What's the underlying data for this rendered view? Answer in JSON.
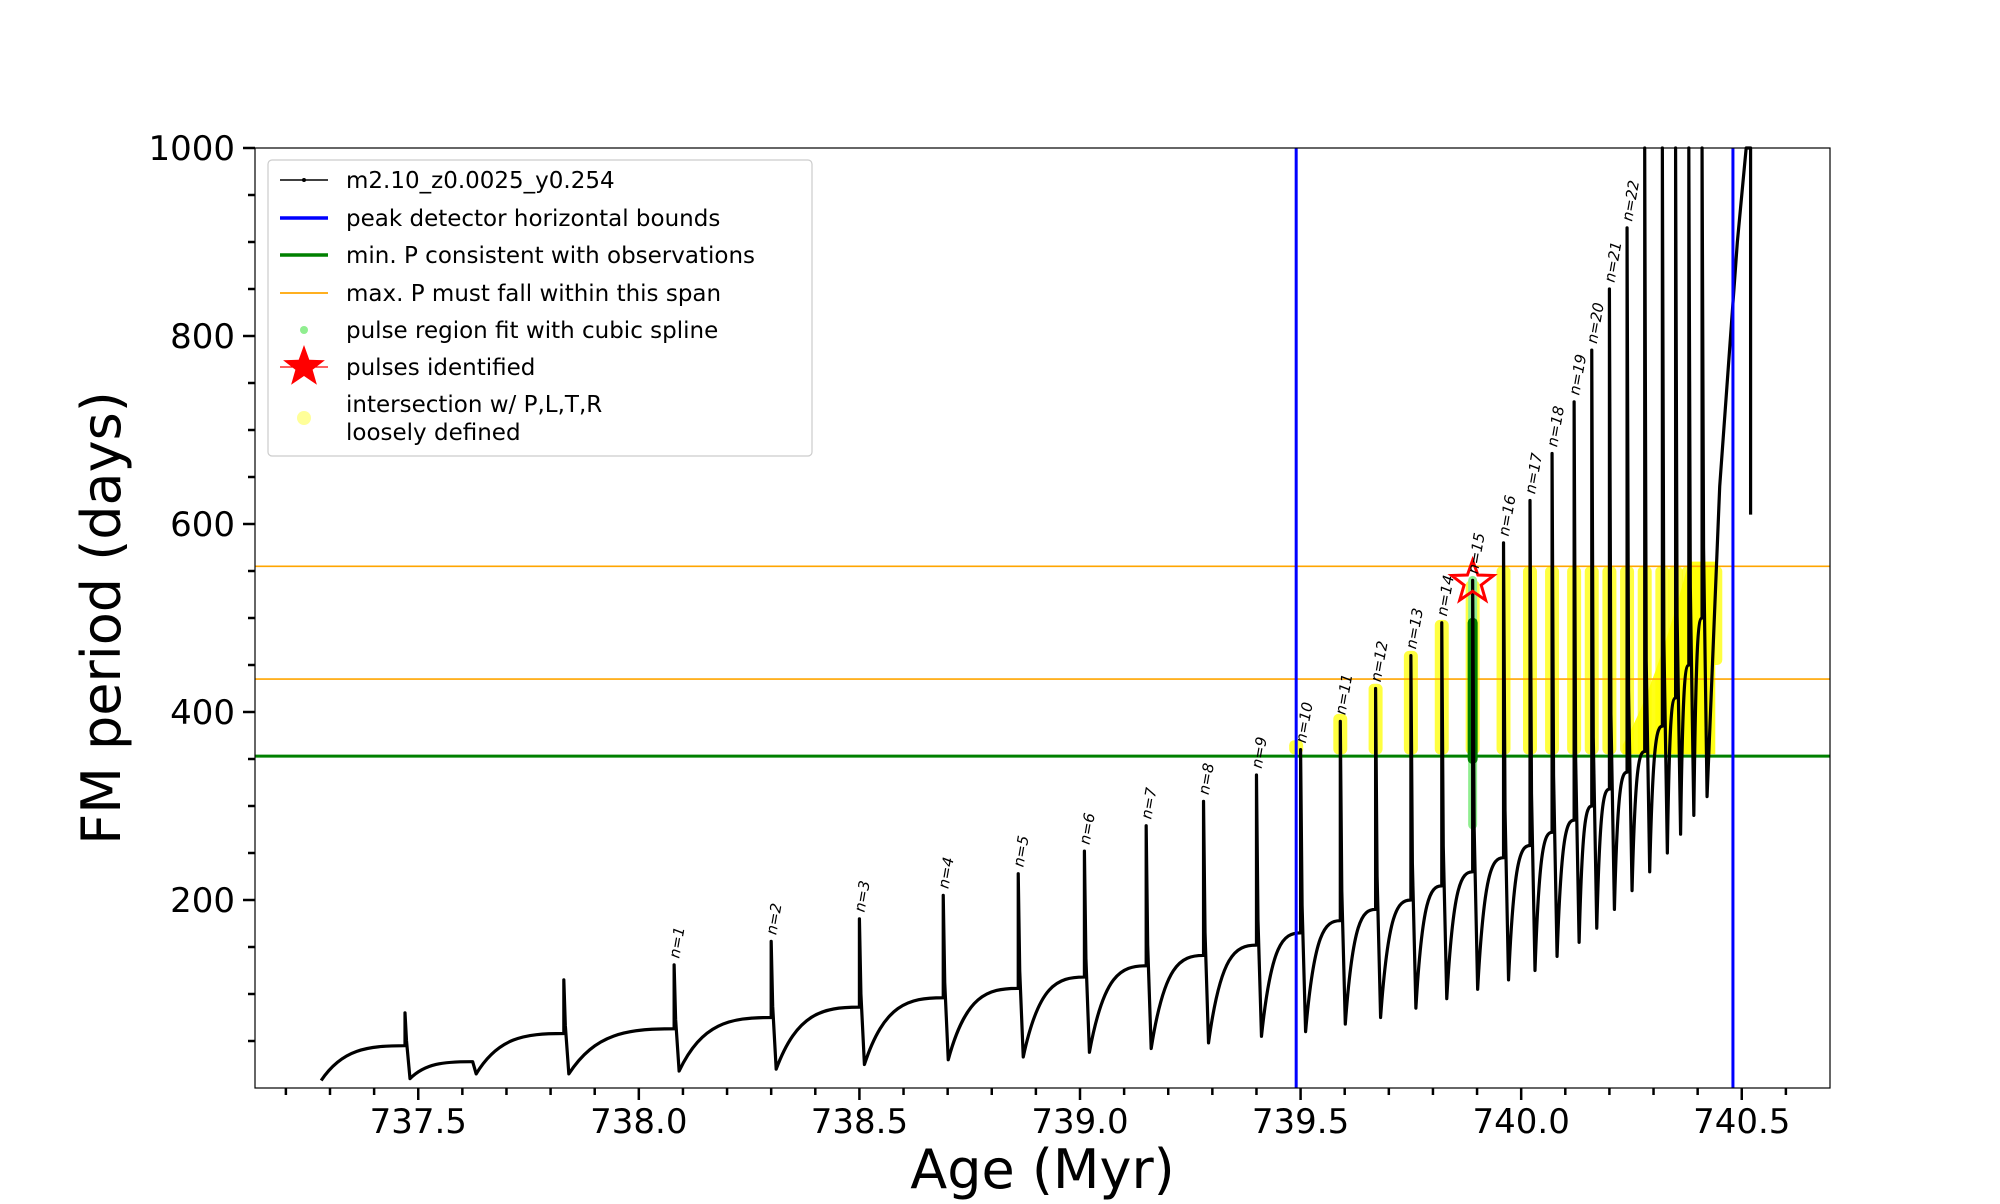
{
  "chart_data": {
    "type": "line",
    "title": "",
    "xlabel": "Age (Myr)",
    "ylabel": "FM period (days)",
    "xlim": [
      737.13,
      740.7
    ],
    "ylim": [
      0,
      1000
    ],
    "x_ticks": [
      737.5,
      738.0,
      738.5,
      739.0,
      739.5,
      740.0,
      740.5
    ],
    "x_tick_labels": [
      "737.5",
      "738.0",
      "738.5",
      "739.0",
      "739.5",
      "740.0",
      "740.5"
    ],
    "y_ticks": [
      200,
      400,
      600,
      800,
      1000
    ],
    "y_tick_labels": [
      "200",
      "400",
      "600",
      "800",
      "1000"
    ],
    "grid": false,
    "legend_position": "top-left",
    "colors": {
      "track": "#000000",
      "peak_bounds": "#0000ff",
      "min_period": "#008000",
      "max_span": "#ffa500",
      "spline": "#90ee90",
      "spline_dark": "#008000",
      "pulse": "#ff0000",
      "intersection": "#ffff00"
    },
    "legend": [
      {
        "label": "m2.10_z0.0025_y0.254",
        "marker": "line-dot",
        "color": "#000000"
      },
      {
        "label": "peak detector horizontal bounds",
        "marker": "line",
        "color": "#0000ff"
      },
      {
        "label": "min. P consistent with observations",
        "marker": "line",
        "color": "#008000"
      },
      {
        "label": "max. P must fall within this span",
        "marker": "thin-line",
        "color": "#ffa500"
      },
      {
        "label": "pulse region fit with cubic spline",
        "marker": "dot",
        "color": "#90ee90"
      },
      {
        "label": "pulses identified",
        "marker": "star",
        "color": "#ff0000"
      },
      {
        "label": "intersection w/ P,L,T,R",
        "label2": "loosely defined",
        "marker": "circle",
        "color": "#ffff99"
      }
    ],
    "vertical_bounds": [
      739.49,
      740.48
    ],
    "min_period": 353,
    "max_period_span": [
      435,
      555
    ],
    "pulse_identified": {
      "x": 739.89,
      "y": 538
    },
    "pulse_labels": [
      "n=1",
      "n=2",
      "n=3",
      "n=4",
      "n=5",
      "n=6",
      "n=7",
      "n=8",
      "n=9",
      "n=10",
      "n=11",
      "n=12",
      "n=13",
      "n=14",
      "n=15",
      "n=16",
      "n=17",
      "n=18",
      "n=19",
      "n=20",
      "n=21",
      "n=22"
    ],
    "series": [
      {
        "name": "m2.10_z0.0025_y0.254",
        "start": {
          "x": 737.28,
          "y": 8
        },
        "pulses": [
          {
            "x": 737.47,
            "floor": 45,
            "peak": 80,
            "trough": 10
          },
          {
            "x": 737.62,
            "floor": 28,
            "peak": 28,
            "trough": 15
          },
          {
            "x": 737.83,
            "floor": 58,
            "peak": 115,
            "trough": 15
          },
          {
            "x": 738.08,
            "floor": 63,
            "peak": 131,
            "trough": 18
          },
          {
            "x": 738.3,
            "floor": 75,
            "peak": 156,
            "trough": 20
          },
          {
            "x": 738.5,
            "floor": 86,
            "peak": 180,
            "trough": 25
          },
          {
            "x": 738.69,
            "floor": 96,
            "peak": 205,
            "trough": 30
          },
          {
            "x": 738.86,
            "floor": 106,
            "peak": 228,
            "trough": 33
          },
          {
            "x": 739.01,
            "floor": 118,
            "peak": 252,
            "trough": 38
          },
          {
            "x": 739.15,
            "floor": 130,
            "peak": 279,
            "trough": 42
          },
          {
            "x": 739.28,
            "floor": 141,
            "peak": 305,
            "trough": 48
          },
          {
            "x": 739.4,
            "floor": 152,
            "peak": 333,
            "trough": 55
          },
          {
            "x": 739.5,
            "floor": 165,
            "peak": 360,
            "trough": 60
          },
          {
            "x": 739.59,
            "floor": 178,
            "peak": 390,
            "trough": 68
          },
          {
            "x": 739.67,
            "floor": 190,
            "peak": 425,
            "trough": 75
          },
          {
            "x": 739.75,
            "floor": 200,
            "peak": 460,
            "trough": 85
          },
          {
            "x": 739.82,
            "floor": 215,
            "peak": 495,
            "trough": 95
          },
          {
            "x": 739.89,
            "floor": 230,
            "peak": 540,
            "trough": 105
          },
          {
            "x": 739.96,
            "floor": 245,
            "peak": 580,
            "trough": 115
          },
          {
            "x": 740.02,
            "floor": 258,
            "peak": 625,
            "trough": 125
          },
          {
            "x": 740.07,
            "floor": 272,
            "peak": 675,
            "trough": 140
          },
          {
            "x": 740.12,
            "floor": 285,
            "peak": 730,
            "trough": 155
          },
          {
            "x": 740.16,
            "floor": 300,
            "peak": 785,
            "trough": 170
          },
          {
            "x": 740.2,
            "floor": 318,
            "peak": 850,
            "trough": 190
          },
          {
            "x": 740.24,
            "floor": 336,
            "peak": 915,
            "trough": 210
          },
          {
            "x": 740.28,
            "floor": 358,
            "peak": 1000,
            "trough": 230
          },
          {
            "x": 740.32,
            "floor": 385,
            "peak": 1000,
            "trough": 250
          },
          {
            "x": 740.35,
            "floor": 415,
            "peak": 1000,
            "trough": 270
          },
          {
            "x": 740.38,
            "floor": 450,
            "peak": 1000,
            "trough": 290
          },
          {
            "x": 740.41,
            "floor": 500,
            "peak": 1000,
            "trough": 310
          }
        ],
        "end": [
          {
            "x": 740.45,
            "y": 640
          },
          {
            "x": 740.49,
            "y": 900
          },
          {
            "x": 740.51,
            "y": 1000
          },
          {
            "x": 740.52,
            "y": 1000
          },
          {
            "x": 740.52,
            "y": 610
          }
        ]
      }
    ],
    "spline_region": {
      "x": 739.89,
      "y_min": 280,
      "y_max": 540,
      "dark_y_min": 350,
      "dark_y_max": 495
    },
    "intersection_regions": [
      {
        "x": 739.49,
        "y0": 355,
        "y1": 370
      },
      {
        "x": 739.59,
        "y0": 355,
        "y1": 398
      },
      {
        "x": 739.67,
        "y0": 355,
        "y1": 430
      },
      {
        "x": 739.75,
        "y0": 355,
        "y1": 465
      },
      {
        "x": 739.82,
        "y0": 355,
        "y1": 498
      },
      {
        "x": 739.89,
        "y0": 355,
        "y1": 540
      },
      {
        "x": 739.96,
        "y0": 355,
        "y1": 555
      },
      {
        "x": 740.02,
        "y0": 355,
        "y1": 555
      },
      {
        "x": 740.07,
        "y0": 355,
        "y1": 555
      },
      {
        "x": 740.12,
        "y0": 355,
        "y1": 555
      },
      {
        "x": 740.16,
        "y0": 355,
        "y1": 555
      },
      {
        "x": 740.2,
        "y0": 355,
        "y1": 555
      },
      {
        "x": 740.24,
        "y0": 355,
        "y1": 555
      },
      {
        "x": 740.28,
        "y0": 355,
        "y1": 555
      },
      {
        "x": 740.32,
        "y0": 355,
        "y1": 555
      },
      {
        "x": 740.35,
        "y0": 355,
        "y1": 555
      },
      {
        "x": 740.38,
        "y0": 355,
        "y1": 555
      },
      {
        "x": 740.41,
        "y0": 355,
        "y1": 555
      },
      {
        "x": 740.44,
        "y0": 450,
        "y1": 555
      }
    ]
  }
}
